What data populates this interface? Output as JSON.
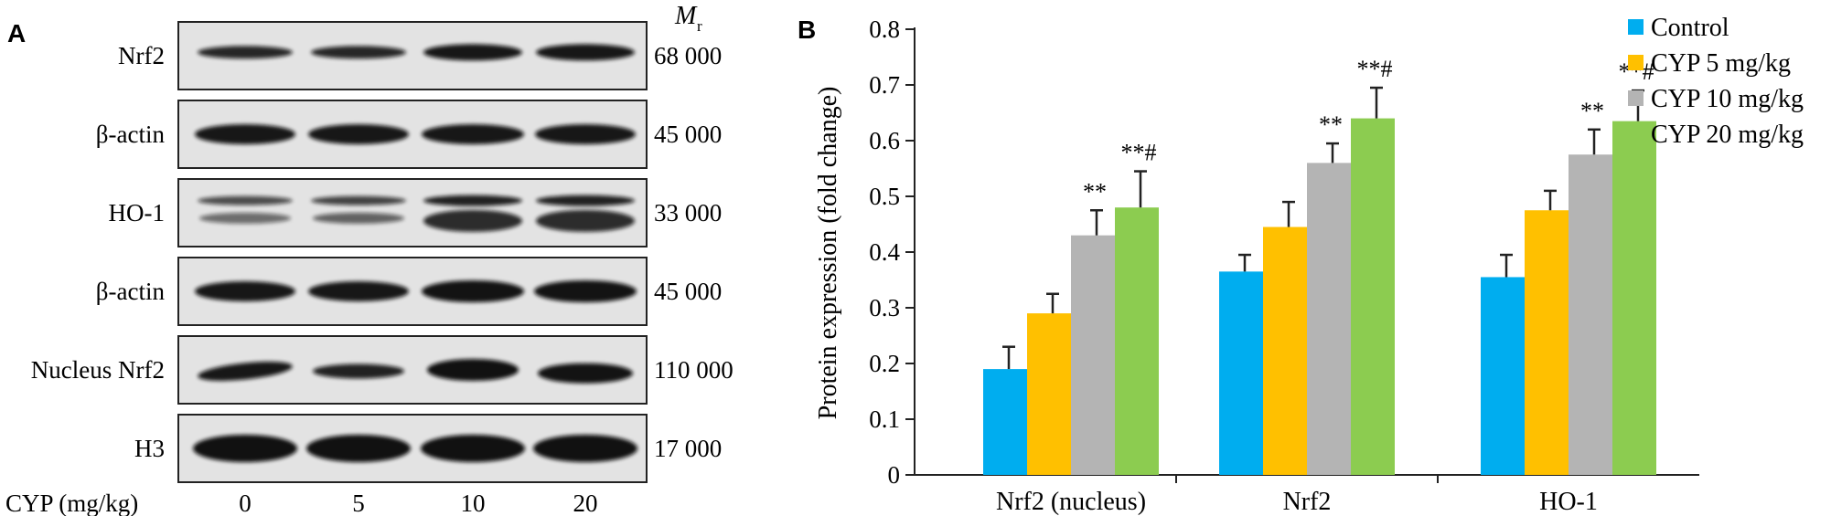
{
  "panel_a": {
    "letter": "A",
    "mr_symbol": "M",
    "mr_subscript": "r",
    "blots": [
      {
        "protein": "Nrf2",
        "mw": "68 000"
      },
      {
        "protein": "β-actin",
        "mw": "45 000"
      },
      {
        "protein": "HO-1",
        "mw": "33 000"
      },
      {
        "protein": "β-actin",
        "mw": "45 000"
      },
      {
        "protein": "Nucleus Nrf2",
        "mw": "110 000"
      },
      {
        "protein": "H3",
        "mw": "17 000"
      }
    ],
    "dose_axis_label": "CYP (mg/kg)",
    "doses": [
      "0",
      "5",
      "10",
      "20"
    ]
  },
  "panel_b": {
    "letter": "B"
  },
  "chart_data": {
    "type": "bar",
    "title": "",
    "xlabel": "",
    "ylabel": "Protein expression (fold change)",
    "ylim": [
      0,
      0.8
    ],
    "yticks": [
      "0",
      "0.1",
      "0.2",
      "0.3",
      "0.4",
      "0.5",
      "0.6",
      "0.7",
      "0.8"
    ],
    "categories": [
      "Nrf2 (nucleus)",
      "Nrf2",
      "HO-1"
    ],
    "legend_position": "top-right",
    "grid": false,
    "series": [
      {
        "name": "Control",
        "color": "#00adef",
        "values": [
          0.19,
          0.365,
          0.355
        ],
        "errors": [
          0.04,
          0.03,
          0.04
        ],
        "annotations": [
          "",
          "",
          ""
        ]
      },
      {
        "name": "CYP 5 mg/kg",
        "color": "#ffc000",
        "values": [
          0.29,
          0.445,
          0.475
        ],
        "errors": [
          0.035,
          0.045,
          0.035
        ],
        "annotations": [
          "",
          "",
          ""
        ]
      },
      {
        "name": "CYP 10 mg/kg",
        "color": "#b4b4b4",
        "values": [
          0.43,
          0.56,
          0.575
        ],
        "errors": [
          0.045,
          0.035,
          0.045
        ],
        "annotations": [
          "**",
          "**",
          "**"
        ]
      },
      {
        "name": "CYP 20 mg/kg",
        "color": "#8ccc50",
        "values": [
          0.48,
          0.64,
          0.635
        ],
        "errors": [
          0.065,
          0.055,
          0.055
        ],
        "annotations": [
          "**#",
          "**#",
          "**#"
        ]
      }
    ]
  }
}
